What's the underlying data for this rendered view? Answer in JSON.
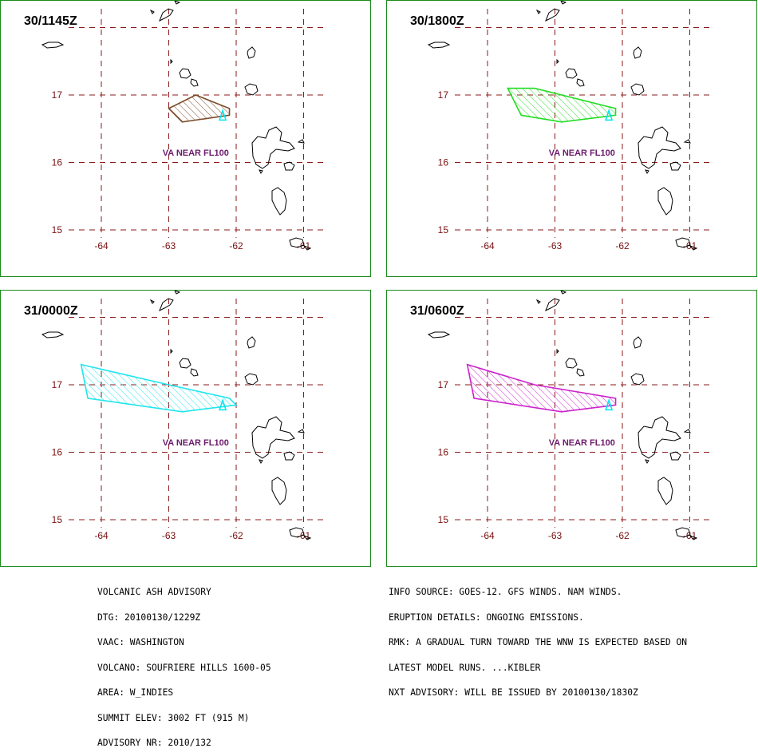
{
  "colors": {
    "grid": "#8b1a1a",
    "frame": "#1a8a1a",
    "coast": "#000000",
    "volcano": "#00e5ee",
    "label": "#6b1a6b"
  },
  "axes": {
    "lon_ticks": [
      "-64",
      "-63",
      "-62",
      "-61"
    ],
    "lat_ticks": [
      "17",
      "16",
      "15"
    ]
  },
  "panels": [
    {
      "id": "p1",
      "time_label": "30/1145Z",
      "cloud_color": "#7a4a2a",
      "va_label": "VA NEAR FL100",
      "polygon": [
        [
          -63.0,
          16.8
        ],
        [
          -62.6,
          17.0
        ],
        [
          -62.1,
          16.8
        ],
        [
          -62.1,
          16.7
        ],
        [
          -62.8,
          16.6
        ]
      ]
    },
    {
      "id": "p2",
      "time_label": "30/1800Z",
      "cloud_color": "#22dd22",
      "va_label": "VA NEAR FL100",
      "polygon": [
        [
          -63.7,
          17.1
        ],
        [
          -63.3,
          17.1
        ],
        [
          -62.1,
          16.8
        ],
        [
          -62.1,
          16.7
        ],
        [
          -62.9,
          16.6
        ],
        [
          -63.5,
          16.7
        ]
      ]
    },
    {
      "id": "p3",
      "time_label": "31/0000Z",
      "cloud_color": "#22e5ee",
      "va_label": "VA NEAR FL100",
      "polygon": [
        [
          -64.3,
          17.3
        ],
        [
          -63.0,
          17.0
        ],
        [
          -62.1,
          16.8
        ],
        [
          -62.0,
          16.7
        ],
        [
          -62.8,
          16.6
        ],
        [
          -64.2,
          16.8
        ]
      ]
    },
    {
      "id": "p4",
      "time_label": "31/0600Z",
      "cloud_color": "#cc22cc",
      "va_label": "VA NEAR FL100",
      "polygon": [
        [
          -64.3,
          17.3
        ],
        [
          -63.3,
          17.0
        ],
        [
          -62.1,
          16.8
        ],
        [
          -62.1,
          16.7
        ],
        [
          -62.9,
          16.6
        ],
        [
          -64.2,
          16.8
        ]
      ]
    }
  ],
  "advisory_left": [
    "VOLCANIC ASH ADVISORY",
    "DTG: 20100130/1229Z",
    "VAAC: WASHINGTON",
    "VOLCANO: SOUFRIERE HILLS 1600-05",
    "AREA: W_INDIES",
    "SUMMIT ELEV: 3002 FT (915 M)",
    "ADVISORY NR: 2010/132"
  ],
  "advisory_right": [
    "INFO SOURCE: GOES-12. GFS WINDS. NAM WINDS.",
    "ERUPTION DETAILS: ONGOING EMISSIONS.",
    "RMK: A GRADUAL TURN TOWARD THE WNW IS EXPECTED BASED ON",
    "LATEST MODEL RUNS. ...KIBLER",
    "NXT ADVISORY: WILL BE ISSUED BY 20100130/1830Z"
  ]
}
